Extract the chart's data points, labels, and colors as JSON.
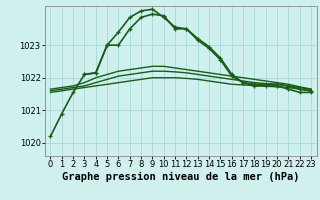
{
  "xlabel": "Graphe pression niveau de la mer (hPa)",
  "background_color": "#cff0ec",
  "grid_color": "#aadddd",
  "line_color": "#1a5c1a",
  "xlim": [
    -0.5,
    23.5
  ],
  "ylim": [
    1019.6,
    1024.2
  ],
  "yticks": [
    1020,
    1021,
    1022,
    1023
  ],
  "xticks": [
    0,
    1,
    2,
    3,
    4,
    5,
    6,
    7,
    8,
    9,
    10,
    11,
    12,
    13,
    14,
    15,
    16,
    17,
    18,
    19,
    20,
    21,
    22,
    23
  ],
  "series": [
    {
      "x": [
        0,
        1,
        2,
        3,
        4,
        5,
        6,
        7,
        8,
        9,
        10,
        11,
        12,
        13,
        14,
        15,
        16,
        17,
        18,
        19,
        20,
        21,
        22,
        23
      ],
      "y": [
        1021.55,
        1021.6,
        1021.65,
        1021.7,
        1021.75,
        1021.8,
        1021.85,
        1021.9,
        1021.95,
        1022.0,
        1022.0,
        1022.0,
        1021.98,
        1021.95,
        1021.9,
        1021.85,
        1021.8,
        1021.78,
        1021.76,
        1021.74,
        1021.72,
        1021.7,
        1021.65,
        1021.6
      ],
      "marker": null,
      "linewidth": 1.0
    },
    {
      "x": [
        0,
        1,
        2,
        3,
        4,
        5,
        6,
        7,
        8,
        9,
        10,
        11,
        12,
        13,
        14,
        15,
        16,
        17,
        18,
        19,
        20,
        21,
        22,
        23
      ],
      "y": [
        1021.6,
        1021.65,
        1021.7,
        1021.75,
        1021.85,
        1021.95,
        1022.05,
        1022.1,
        1022.15,
        1022.2,
        1022.2,
        1022.18,
        1022.15,
        1022.1,
        1022.05,
        1022.0,
        1021.95,
        1021.9,
        1021.85,
        1021.82,
        1021.8,
        1021.75,
        1021.7,
        1021.65
      ],
      "marker": null,
      "linewidth": 1.0
    },
    {
      "x": [
        0,
        1,
        2,
        3,
        4,
        5,
        6,
        7,
        8,
        9,
        10,
        11,
        12,
        13,
        14,
        15,
        16,
        17,
        18,
        19,
        20,
        21,
        22,
        23
      ],
      "y": [
        1021.65,
        1021.7,
        1021.75,
        1021.85,
        1022.0,
        1022.1,
        1022.2,
        1022.25,
        1022.3,
        1022.35,
        1022.35,
        1022.3,
        1022.25,
        1022.2,
        1022.15,
        1022.1,
        1022.05,
        1022.0,
        1021.95,
        1021.9,
        1021.85,
        1021.8,
        1021.72,
        1021.65
      ],
      "marker": null,
      "linewidth": 1.0
    },
    {
      "x": [
        0,
        1,
        2,
        3,
        4,
        5,
        6,
        7,
        8,
        9,
        10,
        11,
        12,
        13,
        14,
        15,
        16,
        17,
        18,
        19,
        20,
        21,
        22,
        23
      ],
      "y": [
        1020.2,
        1020.9,
        1021.55,
        1022.1,
        1022.15,
        1023.0,
        1023.0,
        1023.5,
        1023.85,
        1023.95,
        1023.9,
        1023.5,
        1023.5,
        1023.2,
        1022.95,
        1022.6,
        1022.1,
        1021.85,
        1021.8,
        1021.8,
        1021.8,
        1021.75,
        1021.65,
        1021.6
      ],
      "marker": "+",
      "linewidth": 1.2
    },
    {
      "x": [
        3,
        4,
        5,
        6,
        7,
        8,
        9,
        10,
        11,
        12,
        13,
        14,
        15,
        16,
        17,
        18,
        19,
        20,
        21,
        22,
        23
      ],
      "y": [
        1022.1,
        1022.15,
        1023.0,
        1023.4,
        1023.85,
        1024.05,
        1024.1,
        1023.85,
        1023.55,
        1023.5,
        1023.15,
        1022.9,
        1022.55,
        1022.05,
        1021.85,
        1021.75,
        1021.75,
        1021.75,
        1021.65,
        1021.55,
        1021.55
      ],
      "marker": "+",
      "linewidth": 1.2
    }
  ],
  "tick_fontsize": 6.0,
  "xlabel_fontsize": 7.5,
  "xlabel_fontweight": "bold"
}
